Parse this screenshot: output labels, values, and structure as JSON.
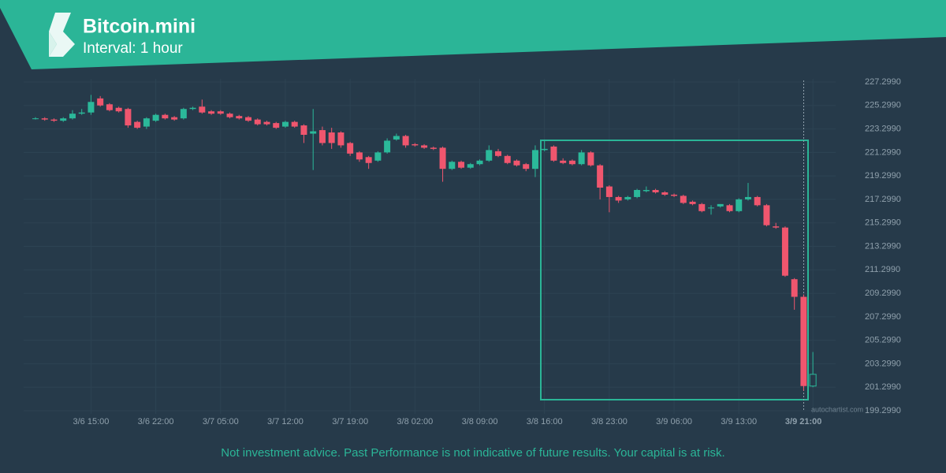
{
  "header": {
    "title": "Bitcoin.mini",
    "interval": "Interval: 1 hour"
  },
  "watermark": "autochartist.com",
  "disclaimer": "Not investment advice. Past Performance is not indicative of future results. Your capital is at risk.",
  "chart_data": {
    "type": "candlestick",
    "categories": [
      null,
      null,
      null,
      null,
      null,
      null,
      "3/6 15:00",
      null,
      null,
      null,
      null,
      null,
      null,
      "3/6 22:00",
      null,
      null,
      null,
      null,
      null,
      null,
      "3/7 05:00",
      null,
      null,
      null,
      null,
      null,
      null,
      "3/7 12:00",
      null,
      null,
      null,
      null,
      null,
      null,
      "3/7 19:00",
      null,
      null,
      null,
      null,
      null,
      null,
      "3/8 02:00",
      null,
      null,
      null,
      null,
      null,
      null,
      "3/8 09:00",
      null,
      null,
      null,
      null,
      null,
      null,
      "3/8 16:00",
      null,
      null,
      null,
      null,
      null,
      null,
      "3/8 23:00",
      null,
      null,
      null,
      null,
      null,
      null,
      "3/9 06:00",
      null,
      null,
      null,
      null,
      null,
      null,
      "3/9 13:00",
      null,
      null,
      null,
      null,
      null,
      null,
      null,
      "3/9 21:00"
    ],
    "open": [
      224.2,
      224.2,
      224.1,
      224.0,
      224.2,
      224.6,
      224.7,
      225.9,
      225.4,
      225.1,
      225.0,
      223.9,
      223.5,
      224.0,
      224.5,
      224.3,
      224.2,
      225.0,
      225.2,
      224.8,
      224.8,
      224.6,
      224.4,
      224.3,
      224.1,
      223.9,
      223.8,
      223.5,
      223.9,
      223.6,
      222.9,
      223.2,
      223.0,
      223.0,
      222.1,
      221.3,
      220.9,
      220.6,
      221.3,
      222.4,
      222.7,
      222.0,
      221.9,
      221.7,
      221.7,
      219.9,
      220.5,
      220.0,
      220.3,
      220.6,
      221.4,
      221.0,
      220.6,
      220.3,
      219.9,
      221.5,
      221.8,
      220.6,
      220.6,
      220.3,
      221.3,
      220.2,
      218.4,
      217.5,
      217.3,
      217.5,
      218.0,
      218.1,
      217.9,
      217.7,
      217.6,
      217.1,
      216.9,
      216.6,
      216.7,
      216.8,
      216.3,
      217.3,
      217.5,
      216.8,
      215.0,
      214.9,
      210.5,
      209.0,
      201.4
    ],
    "high": [
      224.3,
      224.3,
      224.2,
      224.3,
      224.9,
      225.0,
      226.2,
      226.1,
      225.5,
      225.2,
      225.1,
      224.0,
      224.3,
      224.6,
      224.6,
      224.4,
      225.1,
      225.2,
      225.8,
      224.9,
      224.9,
      224.7,
      224.5,
      224.4,
      224.2,
      224.0,
      223.9,
      224.0,
      224.0,
      223.7,
      225.0,
      223.5,
      223.4,
      223.1,
      222.2,
      221.4,
      221.0,
      221.4,
      222.5,
      222.9,
      222.8,
      222.1,
      222.0,
      221.8,
      221.8,
      220.6,
      220.6,
      220.4,
      220.7,
      221.9,
      221.6,
      221.1,
      220.7,
      220.4,
      221.9,
      222.4,
      221.9,
      220.8,
      220.7,
      221.5,
      221.4,
      220.3,
      218.5,
      217.6,
      217.6,
      218.2,
      218.4,
      218.2,
      218.0,
      217.8,
      217.7,
      217.2,
      217.0,
      216.8,
      216.9,
      216.9,
      217.4,
      218.7,
      217.6,
      216.9,
      215.3,
      215.0,
      210.6,
      209.2,
      204.3
    ],
    "low": [
      224.1,
      224.0,
      223.9,
      223.9,
      224.1,
      224.5,
      224.5,
      225.2,
      224.8,
      224.7,
      223.4,
      223.3,
      223.3,
      223.9,
      224.1,
      224.0,
      224.1,
      224.9,
      224.6,
      224.5,
      224.5,
      224.2,
      224.1,
      223.9,
      223.6,
      223.6,
      223.3,
      223.4,
      223.4,
      222.1,
      219.8,
      221.9,
      221.6,
      221.7,
      221.0,
      220.5,
      219.9,
      220.5,
      221.2,
      222.3,
      221.7,
      221.8,
      221.6,
      221.5,
      218.8,
      219.8,
      219.9,
      219.9,
      220.2,
      220.5,
      220.9,
      220.3,
      220.1,
      219.7,
      219.2,
      221.4,
      220.5,
      220.3,
      220.2,
      220.2,
      220.1,
      217.3,
      216.2,
      217.0,
      217.2,
      217.4,
      217.9,
      217.8,
      217.6,
      217.5,
      216.9,
      216.8,
      216.2,
      216.0,
      216.6,
      216.2,
      216.2,
      217.2,
      216.7,
      215.0,
      214.8,
      210.7,
      207.9,
      201.0,
      201.3
    ],
    "close": [
      224.2,
      224.1,
      224.0,
      224.2,
      224.6,
      224.7,
      225.6,
      225.3,
      224.9,
      224.8,
      223.6,
      223.4,
      224.2,
      224.5,
      224.2,
      224.1,
      225.0,
      225.1,
      224.7,
      224.6,
      224.6,
      224.3,
      224.2,
      224.0,
      223.7,
      223.7,
      223.4,
      223.9,
      223.5,
      222.8,
      223.1,
      222.1,
      222.1,
      221.9,
      221.2,
      220.7,
      220.4,
      221.3,
      222.3,
      222.7,
      221.9,
      221.9,
      221.7,
      221.6,
      219.9,
      220.5,
      220.0,
      220.3,
      220.6,
      221.5,
      221.0,
      220.4,
      220.2,
      219.9,
      221.5,
      221.6,
      220.6,
      220.4,
      220.3,
      221.3,
      220.2,
      218.3,
      217.5,
      217.2,
      217.5,
      218.1,
      218.1,
      217.9,
      217.7,
      217.6,
      217.0,
      216.9,
      216.3,
      216.6,
      216.9,
      216.3,
      217.3,
      217.5,
      216.8,
      215.1,
      214.9,
      210.8,
      209.0,
      201.4,
      202.4
    ],
    "up_color": "#2bb99a",
    "down_color": "#f0566e",
    "ylim": [
      199.299,
      227.299
    ],
    "yticks": [
      {
        "value": 199.299,
        "label": "199.2990"
      },
      {
        "value": 201.299,
        "label": "201.2990"
      },
      {
        "value": 203.299,
        "label": "203.2990"
      },
      {
        "value": 205.299,
        "label": "205.2990"
      },
      {
        "value": 207.299,
        "label": "207.2990"
      },
      {
        "value": 209.299,
        "label": "209.2990"
      },
      {
        "value": 211.299,
        "label": "211.2990"
      },
      {
        "value": 213.299,
        "label": "213.2990"
      },
      {
        "value": 215.299,
        "label": "215.2990"
      },
      {
        "value": 217.299,
        "label": "217.2990"
      },
      {
        "value": 219.299,
        "label": "219.2990"
      },
      {
        "value": 221.299,
        "label": "221.2990"
      },
      {
        "value": 223.299,
        "label": "223.2990"
      },
      {
        "value": 225.299,
        "label": "225.2990"
      },
      {
        "value": 227.299,
        "label": "227.2990"
      }
    ],
    "grid": true
  }
}
